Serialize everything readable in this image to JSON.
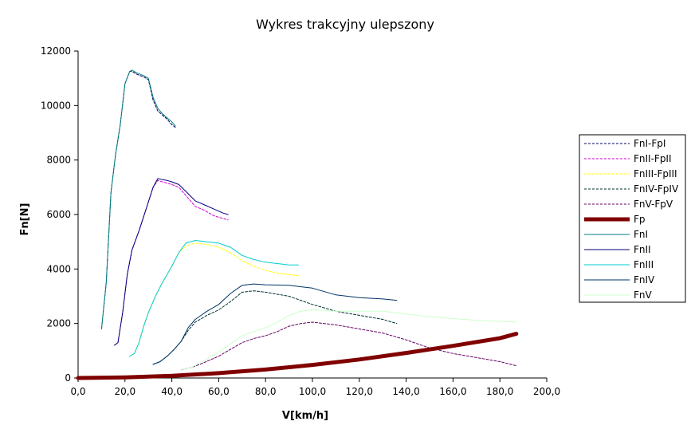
{
  "chart_data": {
    "type": "line",
    "title": "Wykres trakcyjny ulepszony",
    "xlabel": "V[km/h]",
    "ylabel": "Fn[N]",
    "xlim": [
      0,
      200
    ],
    "ylim": [
      0,
      12000
    ],
    "x_ticks": [
      "0,0",
      "20,0",
      "40,0",
      "60,0",
      "80,0",
      "100,0",
      "120,0",
      "140,0",
      "160,0",
      "180,0",
      "200,0"
    ],
    "y_ticks": [
      "0",
      "2000",
      "4000",
      "6000",
      "8000",
      "10000",
      "12000"
    ],
    "legend_position": "right",
    "grid": false,
    "series": [
      {
        "name": "FnI-FpI",
        "color": "#000066",
        "dash": true,
        "width": 1,
        "x": [
          10,
          12,
          14,
          16,
          18,
          20,
          22,
          23,
          25,
          28,
          30,
          32,
          34,
          36,
          38,
          40,
          41.5
        ],
        "y": [
          1800,
          3500,
          6800,
          8200,
          9300,
          10800,
          11250,
          11250,
          11150,
          11050,
          10950,
          10200,
          9800,
          9650,
          9500,
          9300,
          9200
        ]
      },
      {
        "name": "FnII-FpII",
        "color": "#cc00cc",
        "dash": true,
        "width": 1,
        "x": [
          15.5,
          17,
          19,
          21,
          23,
          26,
          29,
          32,
          34,
          36,
          38,
          40,
          43,
          46,
          50,
          54,
          58,
          62,
          64
        ],
        "y": [
          1200,
          1300,
          2400,
          3800,
          4700,
          5400,
          6200,
          7000,
          7250,
          7200,
          7150,
          7100,
          7000,
          6700,
          6300,
          6150,
          5950,
          5850,
          5800
        ]
      },
      {
        "name": "FnIII-FpIII",
        "color": "#ffff00",
        "dash": true,
        "width": 1,
        "x": [
          22,
          24,
          26,
          28,
          30,
          33,
          36,
          40,
          43,
          46,
          50,
          55,
          60,
          65,
          70,
          75,
          80,
          85,
          90,
          94
        ],
        "y": [
          800,
          900,
          1300,
          1900,
          2400,
          3000,
          3500,
          4100,
          4600,
          4850,
          4950,
          4900,
          4800,
          4600,
          4300,
          4100,
          3950,
          3850,
          3800,
          3750
        ]
      },
      {
        "name": "FnIV-FpIV",
        "color": "#003333",
        "dash": true,
        "width": 1,
        "x": [
          32,
          35,
          38,
          41,
          44,
          47,
          50,
          55,
          60,
          65,
          70,
          75,
          80,
          90,
          100,
          110,
          120,
          130,
          136
        ],
        "y": [
          500,
          600,
          800,
          1050,
          1350,
          1750,
          2050,
          2300,
          2500,
          2800,
          3150,
          3200,
          3150,
          3000,
          2700,
          2450,
          2300,
          2150,
          2000
        ]
      },
      {
        "name": "FnV-FpV",
        "color": "#660066",
        "dash": true,
        "width": 1,
        "x": [
          44,
          48,
          52,
          56,
          60,
          65,
          70,
          75,
          80,
          85,
          90,
          95,
          100,
          105,
          110,
          120,
          130,
          140,
          150,
          160,
          170,
          180,
          187
        ],
        "y": [
          300,
          380,
          500,
          650,
          800,
          1050,
          1300,
          1450,
          1550,
          1700,
          1900,
          2000,
          2050,
          2000,
          1950,
          1800,
          1650,
          1400,
          1100,
          900,
          750,
          600,
          450
        ]
      },
      {
        "name": "Fp",
        "color": "#800000",
        "dash": false,
        "width": 5,
        "x": [
          0,
          20,
          40,
          60,
          80,
          100,
          120,
          140,
          160,
          180,
          187
        ],
        "y": [
          0,
          20,
          80,
          180,
          310,
          480,
          680,
          920,
          1180,
          1460,
          1620
        ]
      },
      {
        "name": "FnI",
        "color": "#008080",
        "dash": false,
        "width": 1,
        "x": [
          10,
          12,
          14,
          16,
          18,
          20,
          22,
          23,
          25,
          28,
          30,
          32,
          34,
          36,
          38,
          40,
          41.5
        ],
        "y": [
          1800,
          3500,
          6800,
          8200,
          9300,
          10800,
          11250,
          11300,
          11200,
          11100,
          11000,
          10300,
          9900,
          9700,
          9550,
          9400,
          9250
        ]
      },
      {
        "name": "FnII",
        "color": "#000080",
        "dash": false,
        "width": 1,
        "x": [
          15.5,
          17,
          19,
          21,
          23,
          26,
          29,
          32,
          34,
          36,
          38,
          40,
          43,
          46,
          50,
          54,
          58,
          62,
          64
        ],
        "y": [
          1200,
          1300,
          2400,
          3800,
          4700,
          5400,
          6200,
          7000,
          7320,
          7280,
          7250,
          7200,
          7100,
          6850,
          6500,
          6350,
          6200,
          6050,
          6000
        ]
      },
      {
        "name": "FnIII",
        "color": "#00cccc",
        "dash": false,
        "width": 1,
        "x": [
          22,
          24,
          26,
          28,
          30,
          33,
          36,
          40,
          43,
          46,
          50,
          55,
          60,
          65,
          70,
          75,
          80,
          85,
          90,
          94
        ],
        "y": [
          800,
          900,
          1300,
          1900,
          2400,
          3000,
          3500,
          4100,
          4600,
          4950,
          5050,
          5000,
          4950,
          4800,
          4500,
          4350,
          4250,
          4200,
          4150,
          4150
        ]
      },
      {
        "name": "FnIV",
        "color": "#003366",
        "dash": false,
        "width": 1,
        "x": [
          32,
          35,
          38,
          41,
          44,
          47,
          50,
          55,
          60,
          65,
          70,
          75,
          80,
          90,
          100,
          110,
          120,
          130,
          136
        ],
        "y": [
          500,
          600,
          800,
          1050,
          1350,
          1850,
          2150,
          2450,
          2700,
          3100,
          3400,
          3450,
          3420,
          3400,
          3300,
          3050,
          2950,
          2900,
          2850
        ]
      },
      {
        "name": "FnV",
        "color": "#ccffcc",
        "dash": false,
        "width": 1,
        "x": [
          44,
          48,
          52,
          56,
          60,
          65,
          70,
          75,
          80,
          85,
          90,
          95,
          100,
          105,
          110,
          120,
          130,
          140,
          150,
          160,
          170,
          180,
          187
        ],
        "y": [
          300,
          380,
          550,
          750,
          950,
          1250,
          1550,
          1700,
          1850,
          2050,
          2300,
          2450,
          2500,
          2480,
          2450,
          2450,
          2450,
          2350,
          2250,
          2180,
          2120,
          2080,
          2050
        ]
      }
    ]
  }
}
